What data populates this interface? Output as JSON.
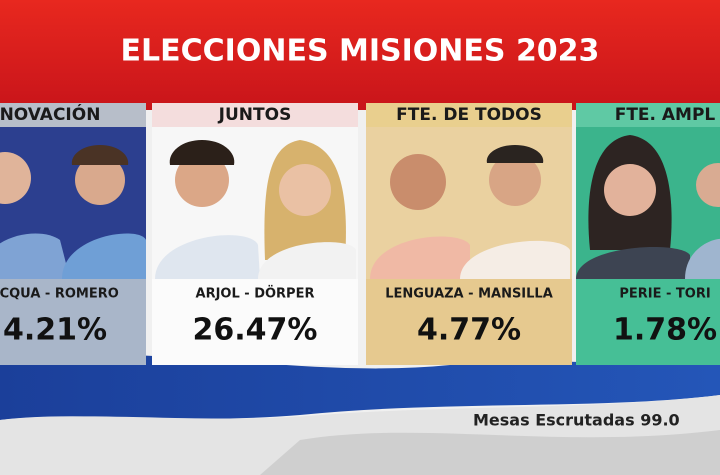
{
  "header": {
    "title": "ELECCIONES MISIONES 2023"
  },
  "panels": [
    {
      "party": "NOVACIÓN",
      "candidates": "LACQUA - ROMERO",
      "percent": "4.21%"
    },
    {
      "party": "JUNTOS",
      "candidates": "ARJOL - DÖRPER",
      "percent": "26.47%"
    },
    {
      "party": "FTE. DE TODOS",
      "candidates": "LENGUAZA - MANSILLA",
      "percent": "4.77%"
    },
    {
      "party": "FTE. AMPL",
      "candidates": "PERIE - TORI",
      "percent": "1.78%"
    }
  ],
  "footer": {
    "text": "Mesas Escrutadas 99.0"
  }
}
